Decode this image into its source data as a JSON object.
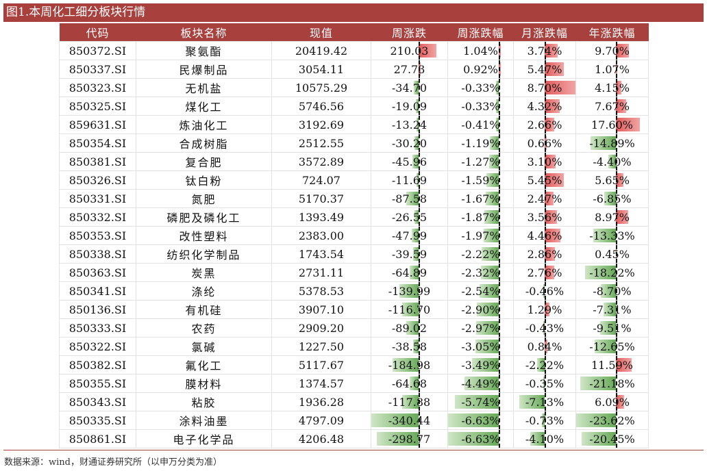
{
  "title": "图1.本周化工细分板块行情",
  "headers": [
    "代码",
    "板块名称",
    "现值",
    "周涨跌",
    "周涨跌幅",
    "月涨跌幅",
    "年涨跌幅"
  ],
  "rows": [
    {
      "code": "850372.SI",
      "name": "聚氨酯",
      "value": "20419.42",
      "wk": "210.03",
      "wkp": "1.04%",
      "mp": "3.74%",
      "yp": "9.70%"
    },
    {
      "code": "850337.SI",
      "name": "民爆制品",
      "value": "3054.11",
      "wk": "27.73",
      "wkp": "0.92%",
      "mp": "5.47%",
      "yp": "1.07%"
    },
    {
      "code": "850323.SI",
      "name": "无机盐",
      "value": "10575.29",
      "wk": "-34.70",
      "wkp": "-0.33%",
      "mp": "8.70%",
      "yp": "4.15%"
    },
    {
      "code": "850325.SI",
      "name": "煤化工",
      "value": "5746.56",
      "wk": "-19.09",
      "wkp": "-0.33%",
      "mp": "4.32%",
      "yp": "7.67%"
    },
    {
      "code": "859631.SI",
      "name": "炼油化工",
      "value": "3192.69",
      "wk": "-13.24",
      "wkp": "-0.41%",
      "mp": "2.66%",
      "yp": "17.60%"
    },
    {
      "code": "850354.SI",
      "name": "合成树脂",
      "value": "2512.55",
      "wk": "-30.20",
      "wkp": "-1.19%",
      "mp": "0.66%",
      "yp": "-14.89%"
    },
    {
      "code": "850381.SI",
      "name": "复合肥",
      "value": "3572.89",
      "wk": "-45.96",
      "wkp": "-1.27%",
      "mp": "3.10%",
      "yp": "-4.40%"
    },
    {
      "code": "850326.SI",
      "name": "钛白粉",
      "value": "724.07",
      "wk": "-11.69",
      "wkp": "-1.59%",
      "mp": "5.45%",
      "yp": "5.65%"
    },
    {
      "code": "850331.SI",
      "name": "氮肥",
      "value": "5170.37",
      "wk": "-87.58",
      "wkp": "-1.67%",
      "mp": "2.47%",
      "yp": "-6.85%"
    },
    {
      "code": "850332.SI",
      "name": "磷肥及磷化工",
      "value": "1393.49",
      "wk": "-26.55",
      "wkp": "-1.87%",
      "mp": "3.56%",
      "yp": "8.97%"
    },
    {
      "code": "850353.SI",
      "name": "改性塑料",
      "value": "2383.00",
      "wk": "-47.99",
      "wkp": "-1.97%",
      "mp": "4.46%",
      "yp": "-13.33%"
    },
    {
      "code": "850338.SI",
      "name": "纺织化学制品",
      "value": "1743.54",
      "wk": "-39.59",
      "wkp": "-2.22%",
      "mp": "2.86%",
      "yp": "0.45%"
    },
    {
      "code": "850363.SI",
      "name": "炭黑",
      "value": "2731.11",
      "wk": "-64.89",
      "wkp": "-2.32%",
      "mp": "2.76%",
      "yp": "-18.22%"
    },
    {
      "code": "850341.SI",
      "name": "涤纶",
      "value": "5378.53",
      "wk": "-139.99",
      "wkp": "-2.54%",
      "mp": "-0.46%",
      "yp": "-8.70%"
    },
    {
      "code": "850136.SI",
      "name": "有机硅",
      "value": "3907.10",
      "wk": "-116.70",
      "wkp": "-2.90%",
      "mp": "1.29%",
      "yp": "-7.31%"
    },
    {
      "code": "850333.SI",
      "name": "农药",
      "value": "2909.20",
      "wk": "-89.02",
      "wkp": "-2.97%",
      "mp": "-0.43%",
      "yp": "-9.51%"
    },
    {
      "code": "850322.SI",
      "name": "氯碱",
      "value": "1227.50",
      "wk": "-38.58",
      "wkp": "-3.05%",
      "mp": "0.84%",
      "yp": "-12.65%"
    },
    {
      "code": "850382.SI",
      "name": "氟化工",
      "value": "5117.67",
      "wk": "-184.98",
      "wkp": "-3.49%",
      "mp": "-2.22%",
      "yp": "11.59%"
    },
    {
      "code": "850355.SI",
      "name": "膜材料",
      "value": "1374.57",
      "wk": "-64.68",
      "wkp": "-4.49%",
      "mp": "-0.35%",
      "yp": "-21.18%"
    },
    {
      "code": "850343.SI",
      "name": "粘胶",
      "value": "1936.28",
      "wk": "-117.88",
      "wkp": "-5.74%",
      "mp": "-7.13%",
      "yp": "6.09%"
    },
    {
      "code": "850335.SI",
      "name": "涂料油墨",
      "value": "4797.09",
      "wk": "-340.44",
      "wkp": "-6.63%",
      "mp": "-0.73%",
      "yp": "-23.62%"
    },
    {
      "code": "850861.SI",
      "name": "电子化学品",
      "value": "4206.48",
      "wk": "-298.77",
      "wkp": "-6.63%",
      "mp": "-4.10%",
      "yp": "-20.45%"
    }
  ],
  "source": "数据来源：wind，财通证券研究所（以申万分类为准）",
  "colors": {
    "header": "#a8403e",
    "positive": "#e35a5a",
    "negative": "#67a957"
  }
}
